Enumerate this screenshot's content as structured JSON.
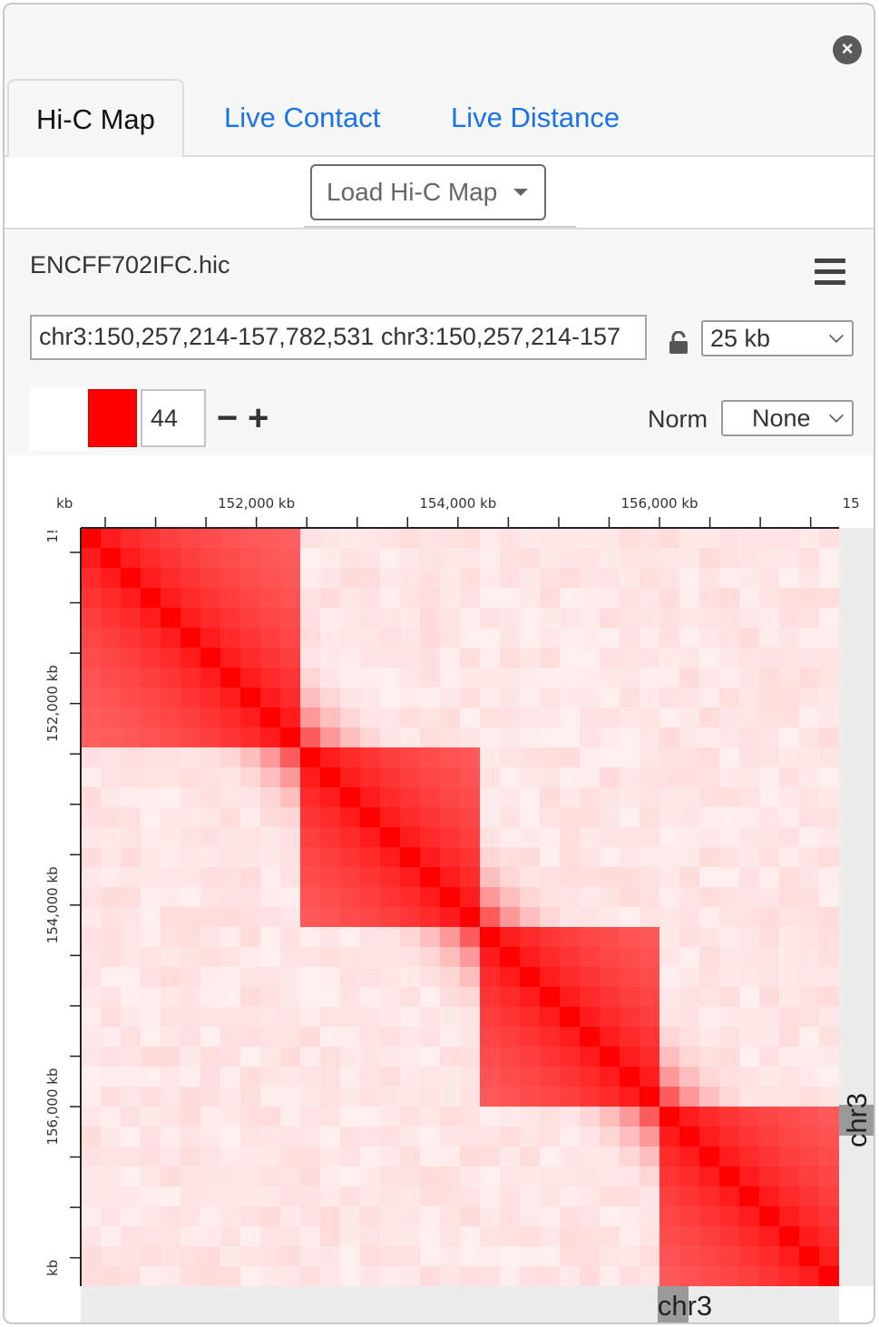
{
  "tabs": [
    {
      "label": "Hi-C Map",
      "active": true
    },
    {
      "label": "Live Contact",
      "active": false
    },
    {
      "label": "Live Distance",
      "active": false
    }
  ],
  "load_button": {
    "label": "Load Hi-C Map"
  },
  "map": {
    "filename": "ENCFF702IFC.hic",
    "locus": "chr3:150,257,214-157,782,531 chr3:150,257,214-157",
    "resolution": "25 kb",
    "color_threshold": "44",
    "norm_label": "Norm",
    "norm_value": "None",
    "color_scale": {
      "low": "#ffffff",
      "high": "#ff0000"
    },
    "chromosome_x": "chr3",
    "chromosome_y": "chr3"
  },
  "chart_data": {
    "type": "heatmap",
    "x_tick_labels": [
      "kb",
      "152,000 kb",
      "154,000 kb",
      "156,000 kb",
      "15"
    ],
    "y_tick_labels": [
      "1!",
      "152,000 kb",
      "154,000 kb",
      "156,000 kb",
      "kb"
    ],
    "range_kb": [
      150257,
      157782
    ],
    "tads_kb": [
      [
        150257,
        152450
      ],
      [
        152450,
        154300
      ],
      [
        154300,
        156050
      ],
      [
        156050,
        157782
      ]
    ],
    "colors": {
      "contact": "#ff0000",
      "background": "#ffffff"
    }
  }
}
